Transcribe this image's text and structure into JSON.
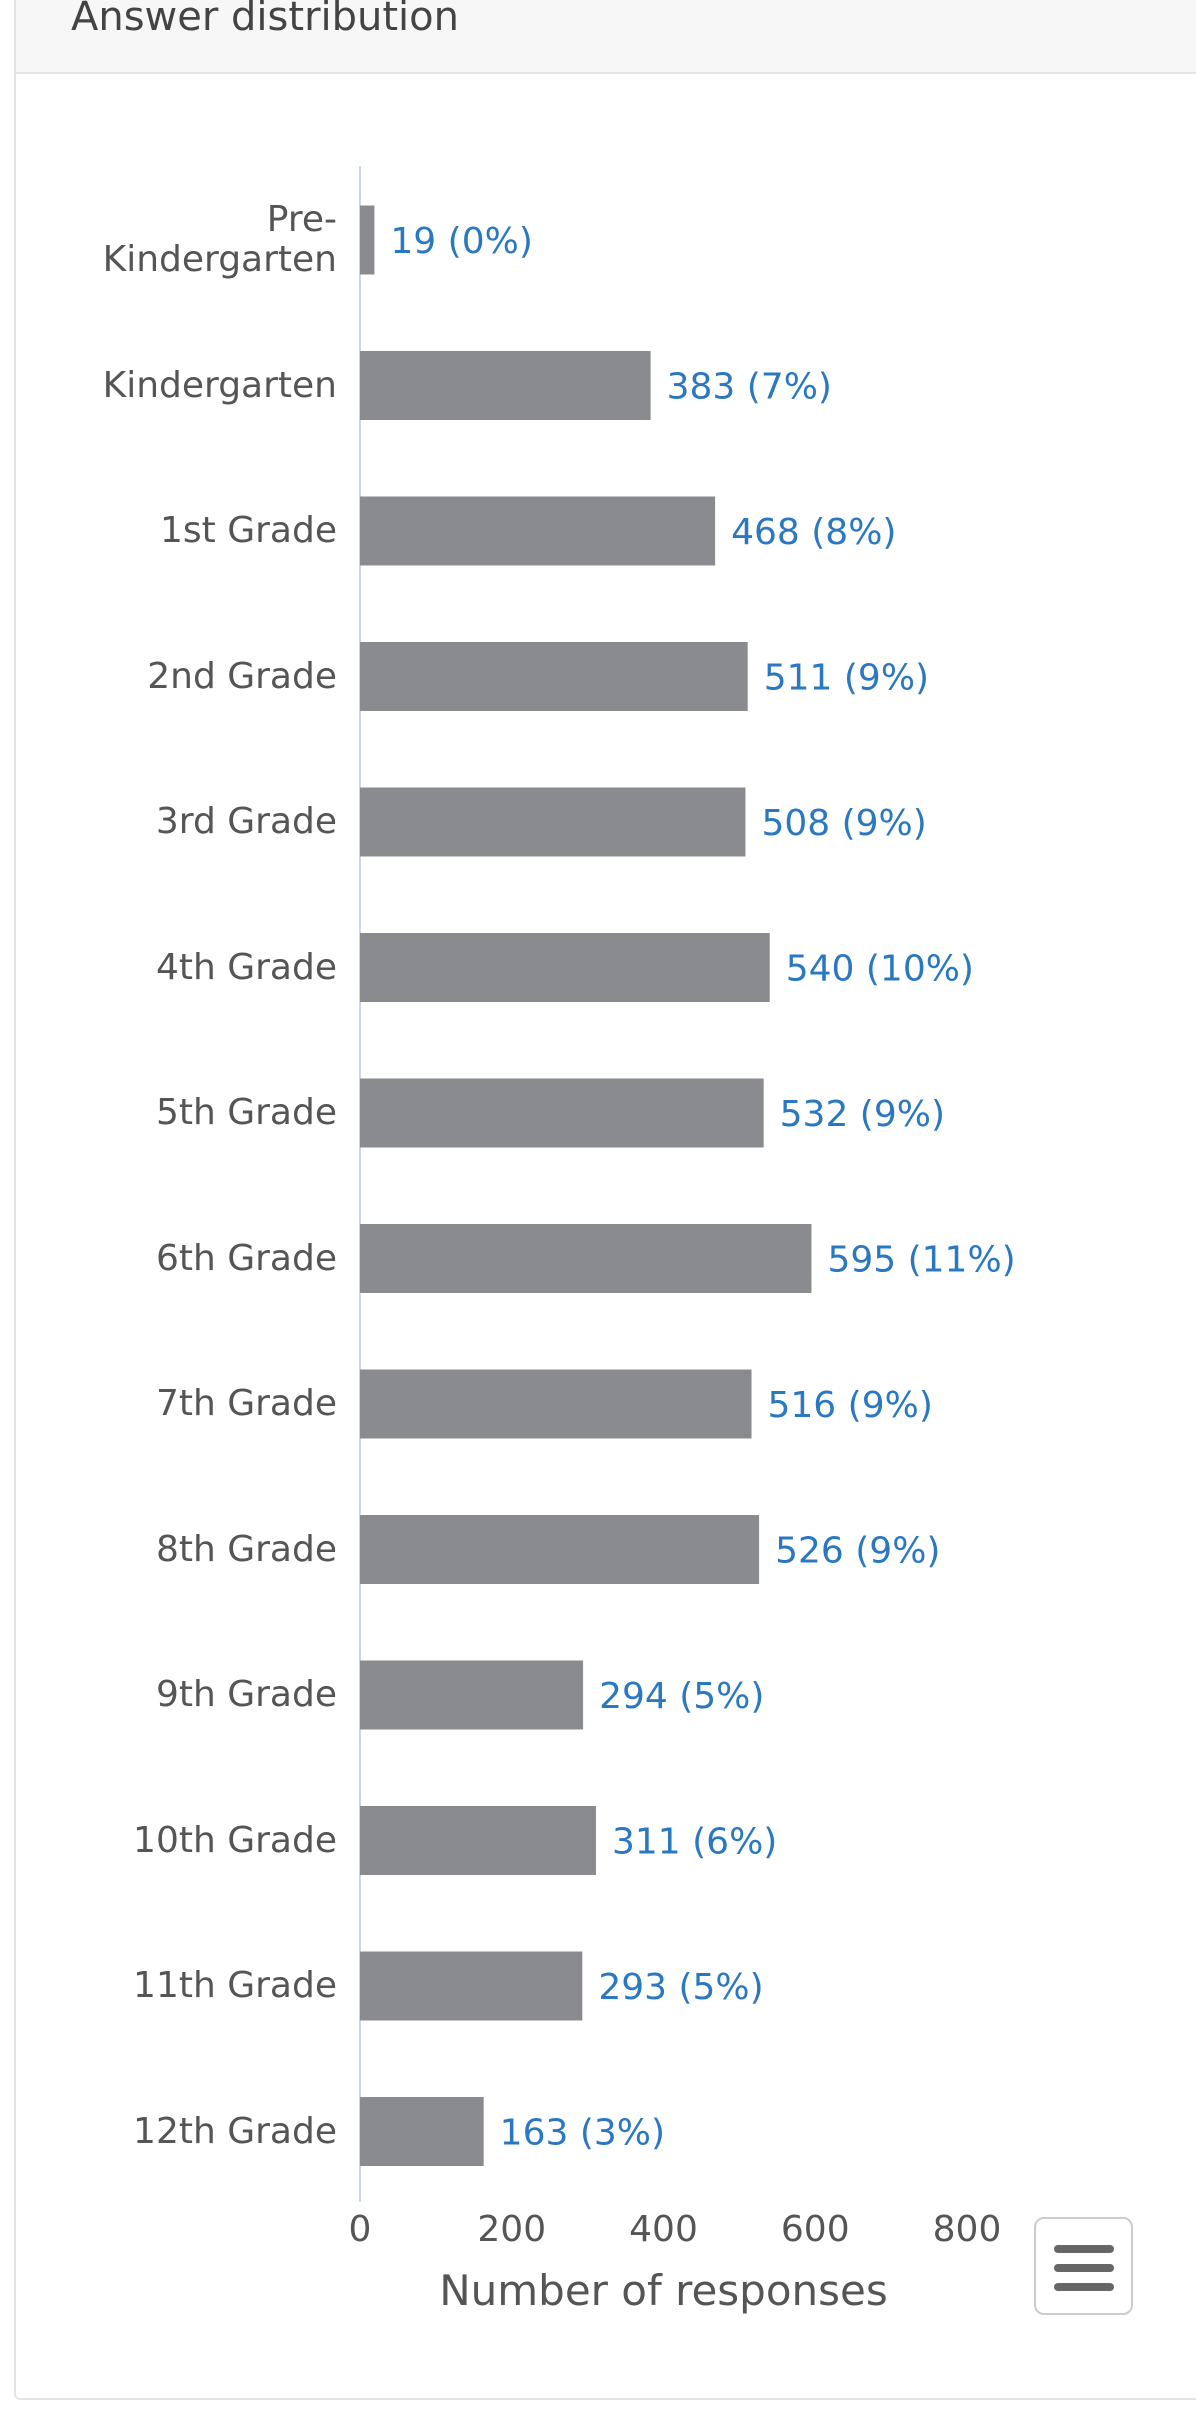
{
  "chart_data": {
    "type": "barh",
    "title": "Answer distribution",
    "categories": [
      "Pre-Kindergarten",
      "Kindergarten",
      "1st Grade",
      "2nd Grade",
      "3rd Grade",
      "4th Grade",
      "5th Grade",
      "6th Grade",
      "7th Grade",
      "8th Grade",
      "9th Grade",
      "10th Grade",
      "11th Grade",
      "12th Grade"
    ],
    "values": [
      19,
      383,
      468,
      511,
      508,
      540,
      532,
      595,
      516,
      526,
      294,
      311,
      293,
      163
    ],
    "value_labels": [
      "19 (0%)",
      "383 (7%)",
      "468 (8%)",
      "511 (9%)",
      "508 (9%)",
      "540 (10%)",
      "532 (9%)",
      "595 (11%)",
      "516 (9%)",
      "526 (9%)",
      "294 (5%)",
      "311 (6%)",
      "293 (5%)",
      "163 (3%)"
    ],
    "color": "#8a8b8e",
    "label_color": "#2b78c2",
    "xlabel": "Number of responses",
    "xlim": [
      0,
      800
    ],
    "xticks": [
      0,
      200,
      400,
      600,
      800
    ],
    "grid": false
  }
}
